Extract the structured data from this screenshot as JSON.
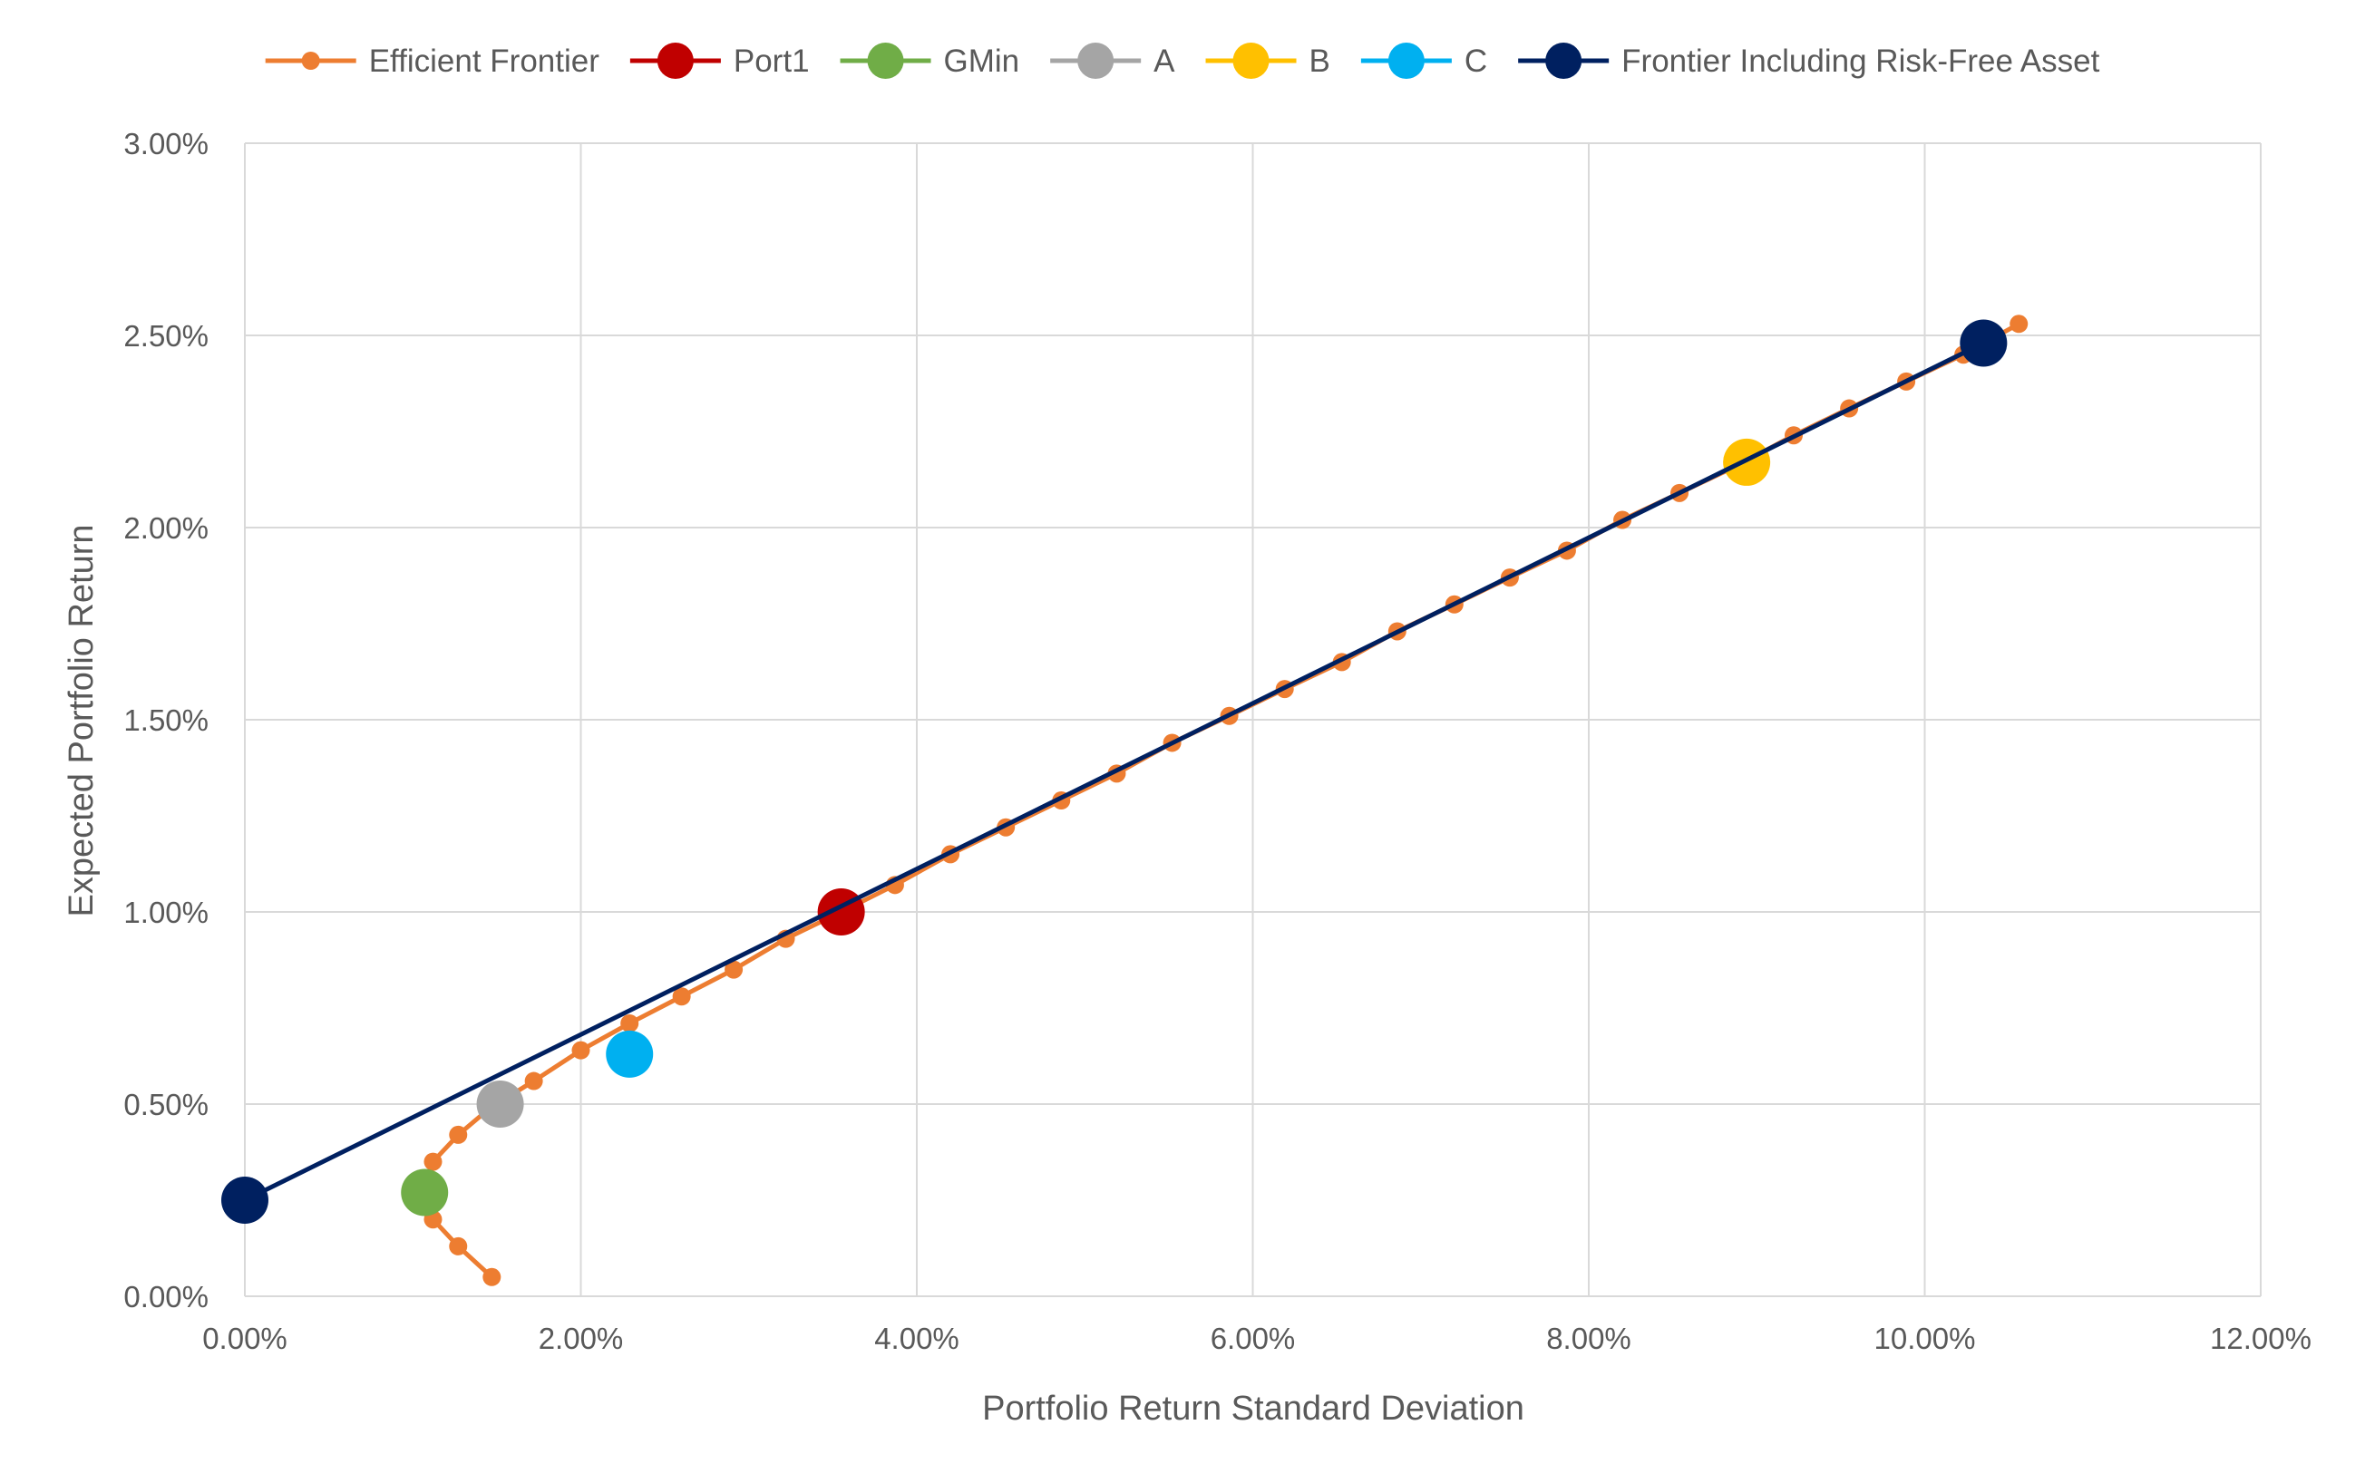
{
  "chart_data": {
    "type": "scatter",
    "xlabel": "Portfolio Return Standard Deviation",
    "ylabel": "Expected Portfolio Return",
    "xlim": [
      0,
      0.12
    ],
    "ylim": [
      0,
      0.03
    ],
    "x_ticks": [
      0,
      0.02,
      0.04,
      0.06,
      0.08,
      0.1,
      0.12
    ],
    "y_ticks": [
      0,
      0.005,
      0.01,
      0.015,
      0.02,
      0.025,
      0.03
    ],
    "x_tick_labels": [
      "0.00%",
      "2.00%",
      "4.00%",
      "6.00%",
      "8.00%",
      "10.00%",
      "12.00%"
    ],
    "y_tick_labels": [
      "0.00%",
      "0.50%",
      "1.00%",
      "1.50%",
      "2.00%",
      "2.50%",
      "3.00%"
    ],
    "grid": true,
    "legend_position": "top",
    "series": [
      {
        "name": "Efficient Frontier",
        "style": "line-marker-small",
        "color": "#ED7D31",
        "points": [
          [
            0.0147,
            0.0005
          ],
          [
            0.0127,
            0.0013
          ],
          [
            0.0112,
            0.002
          ],
          [
            0.0107,
            0.0027
          ],
          [
            0.0112,
            0.0035
          ],
          [
            0.0127,
            0.0042
          ],
          [
            0.0146,
            0.0049
          ],
          [
            0.0172,
            0.0056
          ],
          [
            0.02,
            0.0064
          ],
          [
            0.0229,
            0.0071
          ],
          [
            0.026,
            0.0078
          ],
          [
            0.0291,
            0.0085
          ],
          [
            0.0322,
            0.0093
          ],
          [
            0.0355,
            0.01
          ],
          [
            0.0387,
            0.0107
          ],
          [
            0.042,
            0.0115
          ],
          [
            0.0453,
            0.0122
          ],
          [
            0.0486,
            0.0129
          ],
          [
            0.0519,
            0.0136
          ],
          [
            0.0552,
            0.0144
          ],
          [
            0.0586,
            0.0151
          ],
          [
            0.0619,
            0.0158
          ],
          [
            0.0653,
            0.0165
          ],
          [
            0.0686,
            0.0173
          ],
          [
            0.072,
            0.018
          ],
          [
            0.0753,
            0.0187
          ],
          [
            0.0787,
            0.0194
          ],
          [
            0.082,
            0.0202
          ],
          [
            0.0854,
            0.0209
          ],
          [
            0.0888,
            0.0216
          ],
          [
            0.0922,
            0.0224
          ],
          [
            0.0955,
            0.0231
          ],
          [
            0.0989,
            0.0238
          ],
          [
            0.1023,
            0.0245
          ],
          [
            0.1056,
            0.0253
          ]
        ]
      },
      {
        "name": "Port1",
        "style": "marker-large",
        "color": "#C00000",
        "points": [
          [
            0.0355,
            0.01
          ]
        ]
      },
      {
        "name": "GMin",
        "style": "marker-large",
        "color": "#70AD47",
        "points": [
          [
            0.0107,
            0.0027
          ]
        ]
      },
      {
        "name": "A",
        "style": "marker-large",
        "color": "#A5A5A5",
        "points": [
          [
            0.0152,
            0.005
          ]
        ]
      },
      {
        "name": "B",
        "style": "marker-large",
        "color": "#FFC000",
        "points": [
          [
            0.0894,
            0.0217
          ]
        ]
      },
      {
        "name": "C",
        "style": "marker-large",
        "color": "#00B0F0",
        "points": [
          [
            0.0229,
            0.0063
          ]
        ]
      },
      {
        "name": "Frontier Including Risk-Free Asset",
        "style": "line-marker-large",
        "color": "#002060",
        "points": [
          [
            0.0,
            0.0025
          ],
          [
            0.1035,
            0.0248
          ]
        ]
      }
    ]
  }
}
